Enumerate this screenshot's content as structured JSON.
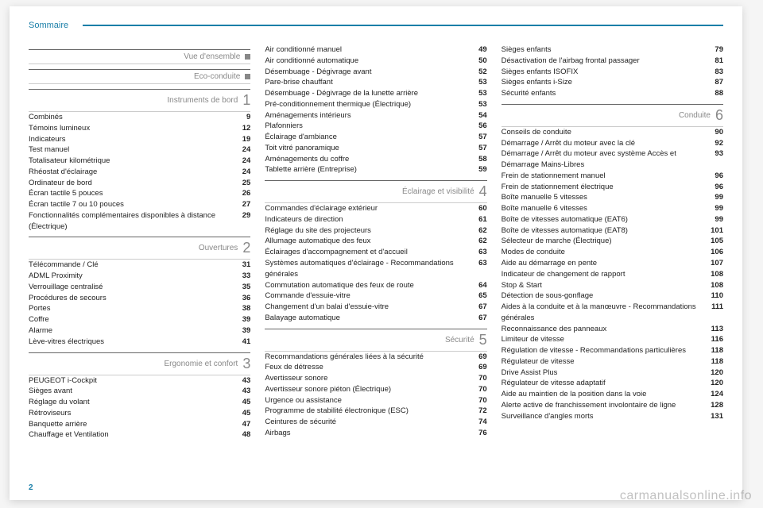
{
  "header": {
    "title": "Sommaire"
  },
  "page_number": "2",
  "watermark": "carmanualsonline.info",
  "colors": {
    "accent": "#1a7fa8",
    "section_text": "#888888",
    "body_text": "#222222",
    "page_bg": "#ffffff",
    "outer_bg": "#f5f5f5"
  },
  "typography": {
    "body_fontsize_pt": 7,
    "header_fontsize_pt": 8,
    "section_num_fontsize_pt": 14
  },
  "columns": [
    {
      "sections": [
        {
          "title": "Vue d'ensemble",
          "marker": "box",
          "items": []
        },
        {
          "title": "Eco-conduite",
          "marker": "box",
          "items": []
        },
        {
          "title": "Instruments de bord",
          "num": "1",
          "items": [
            {
              "label": "Combinés",
              "page": "9"
            },
            {
              "label": "Témoins lumineux",
              "page": "12"
            },
            {
              "label": "Indicateurs",
              "page": "19"
            },
            {
              "label": "Test manuel",
              "page": "24"
            },
            {
              "label": "Totalisateur kilométrique",
              "page": "24"
            },
            {
              "label": "Rhéostat d'éclairage",
              "page": "24"
            },
            {
              "label": "Ordinateur de bord",
              "page": "25"
            },
            {
              "label": "Écran tactile 5 pouces",
              "page": "26"
            },
            {
              "label": "Écran tactile 7 ou 10 pouces",
              "page": "27"
            },
            {
              "label": "Fonctionnalités complémentaires disponibles à distance (Électrique)",
              "page": "29"
            }
          ]
        },
        {
          "title": "Ouvertures",
          "num": "2",
          "items": [
            {
              "label": "Télécommande / Clé",
              "page": "31"
            },
            {
              "label": "ADML Proximity",
              "page": "33"
            },
            {
              "label": "Verrouillage centralisé",
              "page": "35"
            },
            {
              "label": "Procédures de secours",
              "page": "36"
            },
            {
              "label": "Portes",
              "page": "38"
            },
            {
              "label": "Coffre",
              "page": "39"
            },
            {
              "label": "Alarme",
              "page": "39"
            },
            {
              "label": "Lève-vitres électriques",
              "page": "41"
            }
          ]
        },
        {
          "title": "Ergonomie et confort",
          "num": "3",
          "items": [
            {
              "label": "PEUGEOT i-Cockpit",
              "page": "43"
            },
            {
              "label": "Sièges avant",
              "page": "43"
            },
            {
              "label": "Réglage du volant",
              "page": "45"
            },
            {
              "label": "Rétroviseurs",
              "page": "45"
            },
            {
              "label": "Banquette arrière",
              "page": "47"
            },
            {
              "label": "Chauffage et Ventilation",
              "page": "48"
            }
          ]
        }
      ]
    },
    {
      "sections": [
        {
          "items": [
            {
              "label": "Air conditionné manuel",
              "page": "49"
            },
            {
              "label": "Air conditionné automatique",
              "page": "50"
            },
            {
              "label": "Désembuage - Dégivrage avant",
              "page": "52"
            },
            {
              "label": "Pare-brise chauffant",
              "page": "53"
            },
            {
              "label": "Désembuage - Dégivrage de la lunette arrière",
              "page": "53"
            },
            {
              "label": "Pré-conditionnement thermique (Électrique)",
              "page": "53"
            },
            {
              "label": "Aménagements intérieurs",
              "page": "54"
            },
            {
              "label": "Plafonniers",
              "page": "56"
            },
            {
              "label": "Éclairage d'ambiance",
              "page": "57"
            },
            {
              "label": "Toit vitré panoramique",
              "page": "57"
            },
            {
              "label": "Aménagements du coffre",
              "page": "58"
            },
            {
              "label": "Tablette arrière (Entreprise)",
              "page": "59"
            }
          ]
        },
        {
          "title": "Éclairage et visibilité",
          "num": "4",
          "items": [
            {
              "label": "Commandes d'éclairage extérieur",
              "page": "60"
            },
            {
              "label": "Indicateurs de direction",
              "page": "61"
            },
            {
              "label": "Réglage du site des projecteurs",
              "page": "62"
            },
            {
              "label": "Allumage automatique des feux",
              "page": "62"
            },
            {
              "label": "Éclairages d'accompagnement et d'accueil",
              "page": "63"
            },
            {
              "label": "Systèmes automatiques d'éclairage - Recommandations générales",
              "page": "63"
            },
            {
              "label": "Commutation automatique des feux de route",
              "page": "64"
            },
            {
              "label": "Commande d'essuie-vitre",
              "page": "65"
            },
            {
              "label": "Changement d'un balai d'essuie-vitre",
              "page": "67"
            },
            {
              "label": "Balayage automatique",
              "page": "67"
            }
          ]
        },
        {
          "title": "Sécurité",
          "num": "5",
          "items": [
            {
              "label": "Recommandations générales liées à la sécurité",
              "page": "69"
            },
            {
              "label": "Feux de détresse",
              "page": "69"
            },
            {
              "label": "Avertisseur sonore",
              "page": "70"
            },
            {
              "label": "Avertisseur sonore piéton (Électrique)",
              "page": "70"
            },
            {
              "label": "Urgence ou assistance",
              "page": "70"
            },
            {
              "label": "Programme de stabilité électronique (ESC)",
              "page": "72"
            },
            {
              "label": "Ceintures de sécurité",
              "page": "74"
            },
            {
              "label": "Airbags",
              "page": "76"
            }
          ]
        }
      ]
    },
    {
      "sections": [
        {
          "items": [
            {
              "label": "Sièges enfants",
              "page": "79"
            },
            {
              "label": "Désactivation de l'airbag frontal passager",
              "page": "81"
            },
            {
              "label": "Sièges enfants ISOFIX",
              "page": "83"
            },
            {
              "label": "Sièges enfants i-Size",
              "page": "87"
            },
            {
              "label": "Sécurité enfants",
              "page": "88"
            }
          ]
        },
        {
          "title": "Conduite",
          "num": "6",
          "items": [
            {
              "label": "Conseils de conduite",
              "page": "90"
            },
            {
              "label": "Démarrage / Arrêt du moteur avec la clé",
              "page": "92"
            },
            {
              "label": "Démarrage / Arrêt du moteur avec système Accès et Démarrage Mains-Libres",
              "page": "93"
            },
            {
              "label": "Frein de stationnement manuel",
              "page": "96"
            },
            {
              "label": "Frein de stationnement électrique",
              "page": "96"
            },
            {
              "label": "Boîte manuelle 5 vitesses",
              "page": "99"
            },
            {
              "label": "Boîte manuelle 6 vitesses",
              "page": "99"
            },
            {
              "label": "Boîte de vitesses automatique (EAT6)",
              "page": "99"
            },
            {
              "label": "Boîte de vitesses automatique (EAT8)",
              "page": "101"
            },
            {
              "label": "Sélecteur de marche (Électrique)",
              "page": "105"
            },
            {
              "label": "Modes de conduite",
              "page": "106"
            },
            {
              "label": "Aide au démarrage en pente",
              "page": "107"
            },
            {
              "label": "Indicateur de changement de rapport",
              "page": "108"
            },
            {
              "label": "Stop & Start",
              "page": "108"
            },
            {
              "label": "Détection de sous-gonflage",
              "page": "110"
            },
            {
              "label": "Aides à la conduite et à la manœuvre - Recommandations générales",
              "page": "111"
            },
            {
              "label": "Reconnaissance des panneaux",
              "page": "113"
            },
            {
              "label": "Limiteur de vitesse",
              "page": "116"
            },
            {
              "label": "Régulation de vitesse - Recommandations particulières",
              "page": "118"
            },
            {
              "label": "Régulateur de vitesse",
              "page": "118"
            },
            {
              "label": "Drive Assist Plus",
              "page": "120"
            },
            {
              "label": "Régulateur de vitesse adaptatif",
              "page": "120"
            },
            {
              "label": "Aide au maintien de la position dans la voie",
              "page": "124"
            },
            {
              "label": "Alerte active de franchissement involontaire de ligne",
              "page": "128"
            },
            {
              "label": "Surveillance d'angles morts",
              "page": "131"
            }
          ]
        }
      ]
    }
  ]
}
